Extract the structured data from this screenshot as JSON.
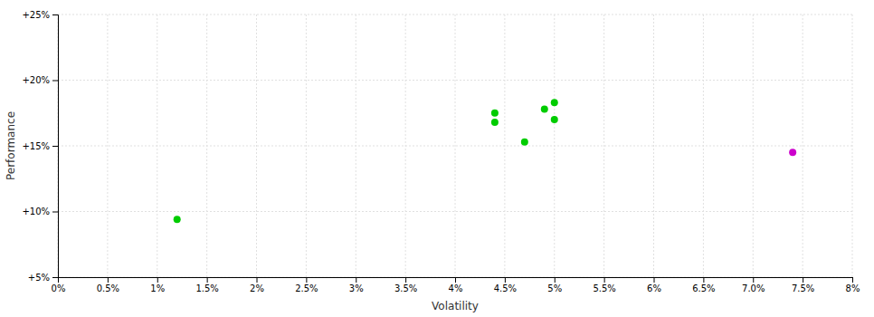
{
  "chart_data": {
    "type": "scatter",
    "xlabel": "Volatility",
    "ylabel": "Performance",
    "xlim": [
      0.0,
      0.08
    ],
    "ylim": [
      0.05,
      0.25
    ],
    "xticks": [
      {
        "value": 0.0,
        "label": "0%"
      },
      {
        "value": 0.005,
        "label": "0.5%"
      },
      {
        "value": 0.01,
        "label": "1%"
      },
      {
        "value": 0.015,
        "label": "1.5%"
      },
      {
        "value": 0.02,
        "label": "2%"
      },
      {
        "value": 0.025,
        "label": "2.5%"
      },
      {
        "value": 0.03,
        "label": "3%"
      },
      {
        "value": 0.035,
        "label": "3.5%"
      },
      {
        "value": 0.04,
        "label": "4%"
      },
      {
        "value": 0.045,
        "label": "4.5%"
      },
      {
        "value": 0.05,
        "label": "5%"
      },
      {
        "value": 0.055,
        "label": "5.5%"
      },
      {
        "value": 0.06,
        "label": "6%"
      },
      {
        "value": 0.065,
        "label": "6.5%"
      },
      {
        "value": 0.07,
        "label": "7.0%"
      },
      {
        "value": 0.075,
        "label": "7.5%"
      },
      {
        "value": 0.08,
        "label": "8%"
      }
    ],
    "yticks": [
      {
        "value": 0.05,
        "label": "+5%"
      },
      {
        "value": 0.1,
        "label": "+10%"
      },
      {
        "value": 0.15,
        "label": "+15%"
      },
      {
        "value": 0.2,
        "label": "+20%"
      },
      {
        "value": 0.25,
        "label": "+25%"
      }
    ],
    "grid": true,
    "series": [
      {
        "color": "#00cc00",
        "x": [
          0.012,
          0.044,
          0.044,
          0.047,
          0.05,
          0.049,
          0.05
        ],
        "values": [
          0.094,
          0.175,
          0.168,
          0.153,
          0.183,
          0.178,
          0.17
        ]
      },
      {
        "color": "#cc00cc",
        "x": [
          0.074
        ],
        "values": [
          0.145
        ]
      }
    ]
  }
}
